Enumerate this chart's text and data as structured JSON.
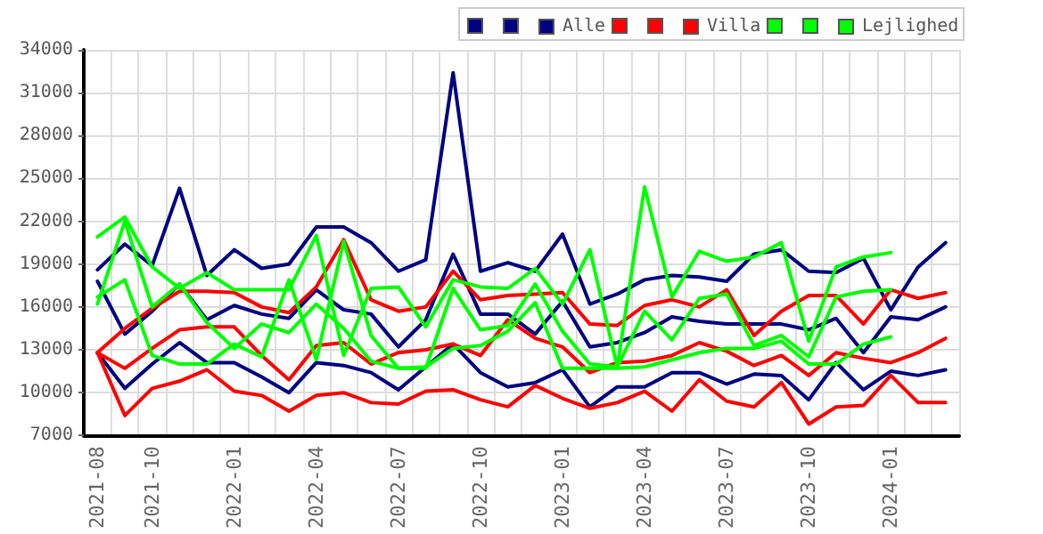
{
  "chart_data": {
    "type": "line",
    "categories": [
      "2021-08",
      null,
      "2021-10",
      null,
      null,
      "2022-01",
      null,
      null,
      "2022-04",
      null,
      null,
      "2022-07",
      null,
      null,
      "2022-10",
      null,
      null,
      "2023-01",
      null,
      null,
      "2023-04",
      null,
      null,
      "2023-07",
      null,
      null,
      "2023-10",
      null,
      null,
      "2024-01",
      null,
      null
    ],
    "series": [
      {
        "color": "#000080",
        "values": [
          18600,
          20400,
          18900,
          24300,
          18200,
          20000,
          18700,
          19000,
          21600,
          21600,
          20500,
          18500,
          19300,
          32400,
          18500,
          19100,
          18500,
          21100,
          16200,
          16900,
          17900,
          18200,
          18100,
          17800,
          19700,
          20000,
          18500,
          18400,
          19400,
          15800,
          18800,
          20500
        ]
      },
      {
        "color": "#000080",
        "values": [
          17800,
          14100,
          15700,
          17600,
          15100,
          16100,
          15500,
          15200,
          17200,
          15800,
          15500,
          13200,
          15100,
          19700,
          15500,
          15500,
          14100,
          16400,
          13200,
          13500,
          14200,
          15300,
          15000,
          14800,
          14800,
          14800,
          14400,
          15200,
          12800,
          15300,
          15100,
          16000
        ]
      },
      {
        "name": "Alle",
        "color": "#000080",
        "values": [
          12800,
          10300,
          12000,
          13500,
          12100,
          12100,
          11100,
          10000,
          12100,
          11900,
          11400,
          10200,
          11800,
          13400,
          11400,
          10400,
          10700,
          11600,
          9000,
          10400,
          10400,
          11400,
          11400,
          10600,
          11300,
          11200,
          9500,
          12100,
          10200,
          11500,
          11200,
          11600
        ]
      },
      {
        "color": "#ff0000",
        "values": [
          12800,
          14500,
          15900,
          17100,
          17100,
          17000,
          16000,
          15600,
          17400,
          20700,
          16500,
          15700,
          16000,
          18500,
          16500,
          16800,
          16900,
          17000,
          14800,
          14700,
          16100,
          16500,
          16000,
          17200,
          14000,
          15700,
          16800,
          16800,
          14800,
          17200,
          16600,
          17000
        ]
      },
      {
        "color": "#ff0000",
        "values": [
          12800,
          11700,
          13100,
          14400,
          14600,
          14600,
          12600,
          10900,
          13300,
          13500,
          12000,
          12800,
          13000,
          13400,
          12600,
          15100,
          13800,
          13200,
          11400,
          12100,
          12200,
          12600,
          13500,
          12900,
          11900,
          12600,
          11200,
          12800,
          12400,
          12100,
          12800,
          13800
        ]
      },
      {
        "name": "Villa",
        "color": "#ff0000",
        "values": [
          12800,
          8400,
          10300,
          10800,
          11600,
          10100,
          9800,
          8700,
          9800,
          10000,
          9300,
          9200,
          10100,
          10200,
          9500,
          9000,
          10500,
          9600,
          8900,
          9300,
          10100,
          8700,
          10900,
          9400,
          9000,
          10700,
          7800,
          9000,
          9100,
          11200,
          9300,
          9300
        ]
      },
      {
        "color": "#00ff00",
        "values": [
          20900,
          22300,
          18800,
          17300,
          18400,
          17200,
          17200,
          17200,
          21000,
          12600,
          17300,
          17400,
          14600,
          17900,
          17400,
          17300,
          18700,
          16200,
          20000,
          11800,
          24400,
          16700,
          19900,
          19200,
          19500,
          20500,
          13600,
          18800,
          19500,
          19800,
          null,
          null
        ]
      },
      {
        "color": "#00ff00",
        "values": [
          16700,
          17900,
          12600,
          12000,
          12000,
          13400,
          12500,
          17900,
          12300,
          20600,
          14000,
          11700,
          11700,
          17300,
          14400,
          14700,
          17600,
          14300,
          12000,
          11800,
          15700,
          13700,
          16600,
          16900,
          13300,
          14000,
          12500,
          16700,
          17100,
          17200,
          null,
          null
        ]
      },
      {
        "name": "Lejlighed",
        "color": "#00ff00",
        "values": [
          16200,
          22000,
          16000,
          17600,
          14900,
          13100,
          14800,
          14200,
          16200,
          14500,
          12200,
          11700,
          11800,
          13100,
          13300,
          14300,
          16300,
          11700,
          11700,
          11700,
          11800,
          12300,
          12800,
          13100,
          13100,
          13600,
          12000,
          12000,
          13400,
          13900,
          null,
          null
        ]
      }
    ],
    "ylim": [
      7000,
      34000
    ],
    "yticks": [
      7000,
      10000,
      13000,
      16000,
      19000,
      22000,
      25000,
      28000,
      31000,
      34000
    ],
    "grid": true,
    "legend": "top right",
    "marker": "none",
    "line_style": "solid"
  }
}
